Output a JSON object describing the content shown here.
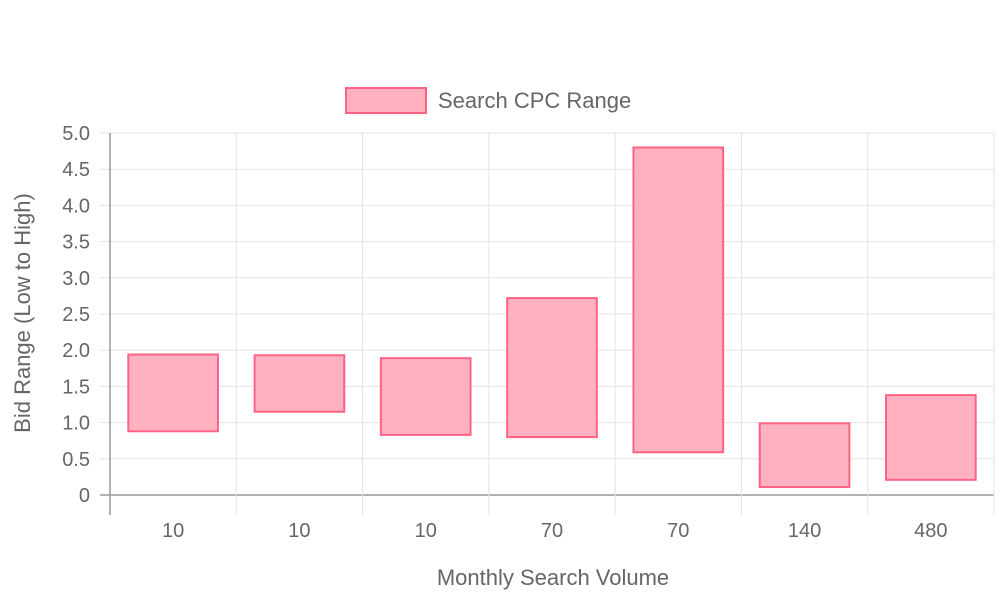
{
  "chart_data": {
    "type": "bar",
    "categories": [
      "10",
      "10",
      "10",
      "70",
      "70",
      "140",
      "480"
    ],
    "series": [
      {
        "name": "Search CPC Range",
        "ranges": [
          [
            0.88,
            1.94
          ],
          [
            1.15,
            1.93
          ],
          [
            0.83,
            1.89
          ],
          [
            0.8,
            2.72
          ],
          [
            0.59,
            4.8
          ],
          [
            0.11,
            0.99
          ],
          [
            0.21,
            1.38
          ]
        ]
      }
    ],
    "xlabel": "Monthly Search Volume",
    "ylabel": "Bid Range (Low to High)",
    "ylim": [
      0,
      5
    ],
    "yticks": [
      "0",
      "0.5",
      "1.0",
      "1.5",
      "2.0",
      "2.5",
      "3.0",
      "3.5",
      "4.0",
      "4.5",
      "5.0"
    ],
    "grid": true,
    "legend_position": "top",
    "colors": {
      "bar_fill": "#ffb1c1",
      "bar_stroke": "#ff6384",
      "grid": "#e3e3e3",
      "text": "#666666"
    }
  }
}
